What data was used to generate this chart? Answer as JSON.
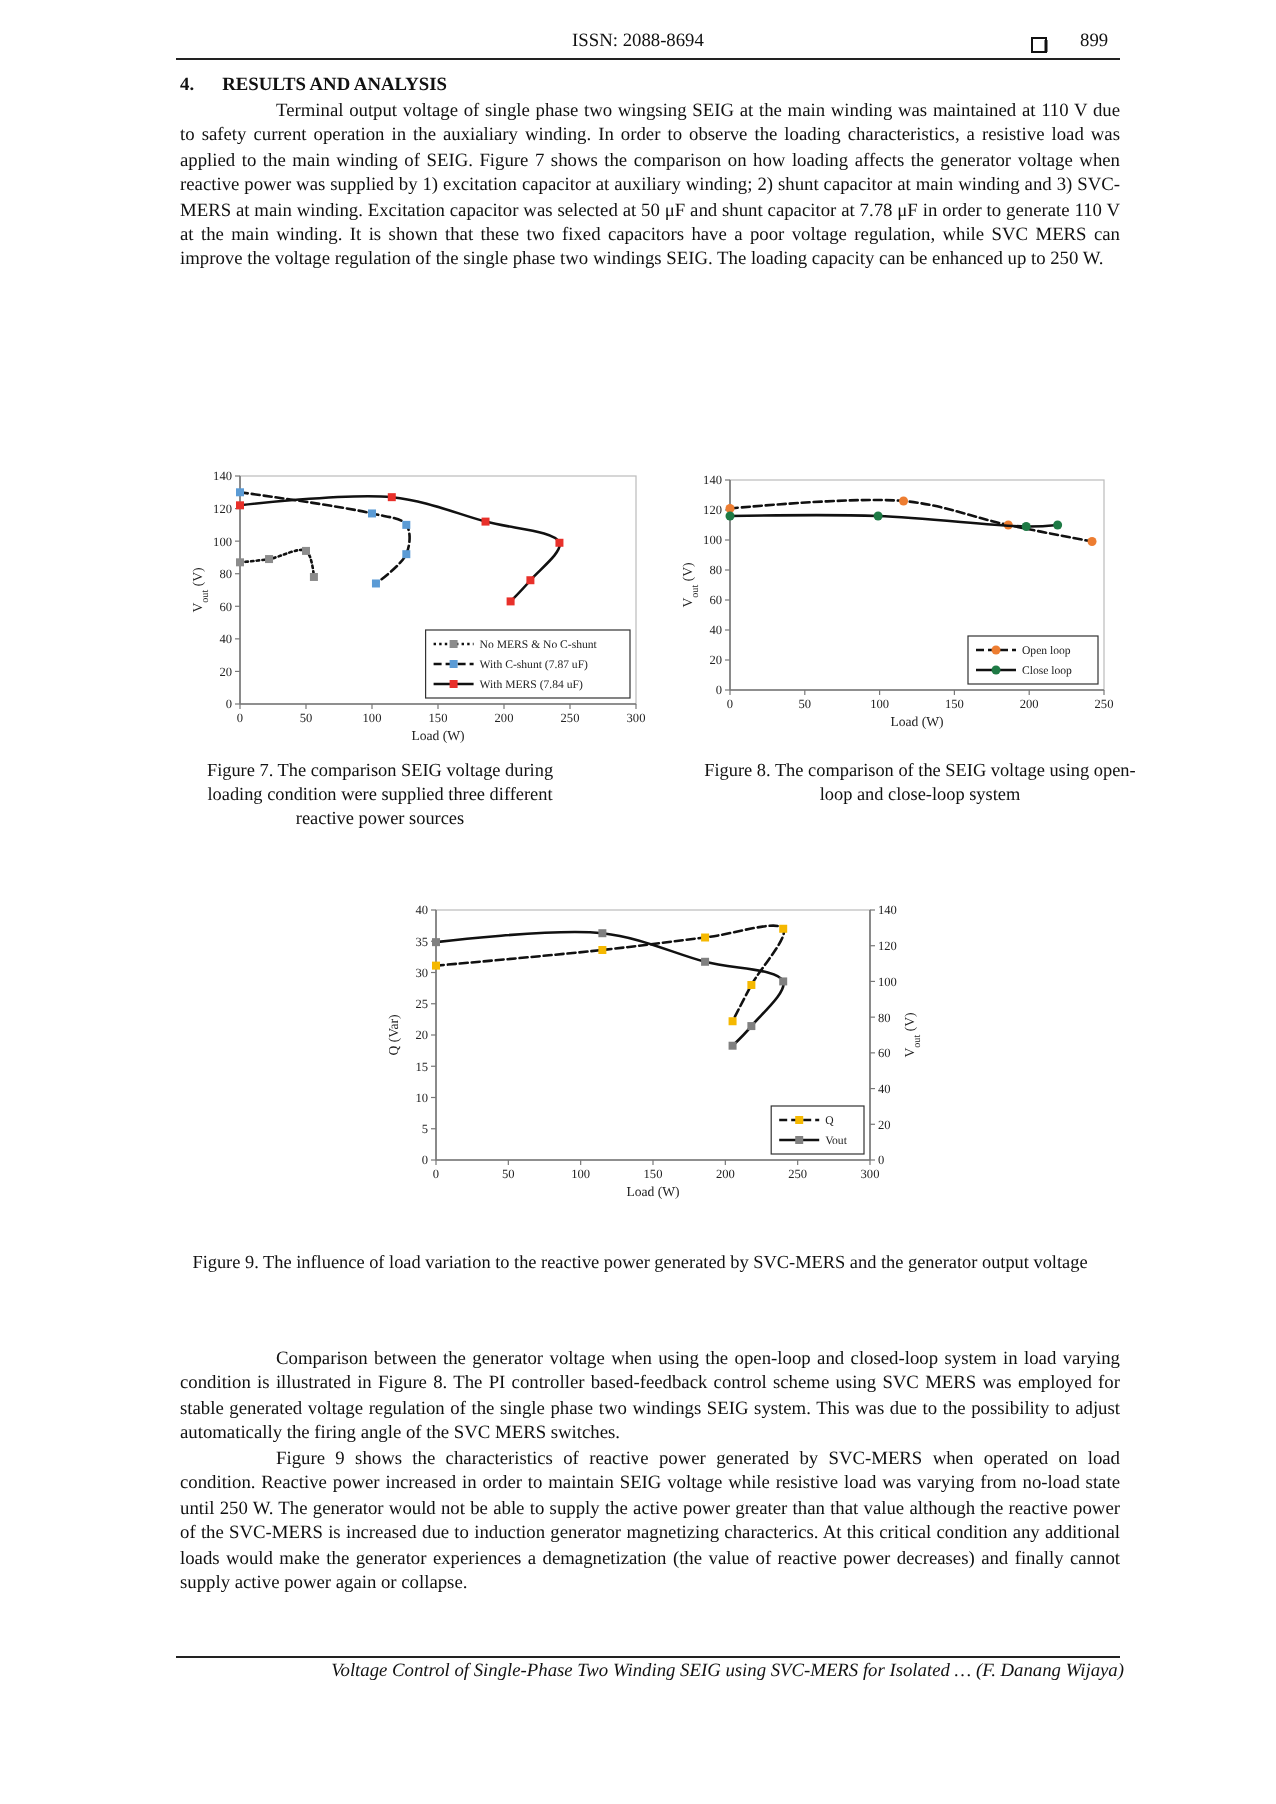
{
  "chart_data": [
    {
      "type": "line",
      "title": "Figure 7. The comparison SEIG voltage during loading condition were supplied three different reactive power sources",
      "xlabel": "Load (W)",
      "ylabel": "V$_{out}$ (V)",
      "xlim": [
        0,
        300
      ],
      "xticks": [
        0,
        50,
        100,
        150,
        200,
        250,
        300
      ],
      "ylim": [
        0,
        140
      ],
      "yticks": [
        0,
        20,
        40,
        60,
        80,
        100,
        120,
        140
      ],
      "marker": "square",
      "legend": "bottom right",
      "annotations": [
        "ISSN: 2088-8694",
        "899",
        "4.      RESULTS AND ANALYSIS",
        "Terminal output voltage of single phase two wingsing SEIG at the main winding was maintained at 110 V due to safety current operation in the auxialiary winding. In order to observe the loading characteristics, a resistive load was applied to the main winding of SEIG. Figure 7 shows the comparison on how loading affects the generator voltage when reactive power was supplied by 1) excitation capacitor at auxiliary winding; 2) shunt capacitor at main winding and 3) SVC-MERS at main winding. Excitation capacitor was selected at 50 μF and shunt capacitor at 7.78 μF in order to generate 110 V at the main winding. It is shown that these two fixed capacitors have a poor voltage regulation, while SVC MERS can improve the voltage regulation of the single phase two windings SEIG. The loading capacity can be enhanced up to 250 W."
      ],
      "series": [
        {
          "name": "No MERS & No C-shunt",
          "color": "#8c8c8c",
          "line_style": "dotted",
          "x": [
            0,
            22,
            50,
            56
          ],
          "values": [
            87,
            89,
            94,
            78
          ]
        },
        {
          "name": "With C-shunt (7.87 uF)",
          "color": "#5b9bd5",
          "line_style": "dashed",
          "x": [
            0,
            100,
            126,
            126,
            103
          ],
          "values": [
            130,
            117,
            110,
            92,
            74
          ]
        },
        {
          "name": "With MERS (7.84 uF)",
          "color": "#e8302a",
          "line_style": "solid",
          "x": [
            0,
            115,
            186,
            242,
            220,
            205
          ],
          "values": [
            122,
            127,
            112,
            99,
            76,
            63
          ]
        }
      ]
    },
    {
      "type": "line",
      "title": "Figure 8. The comparison of the SEIG voltage using open-loop and close-loop system",
      "xlabel": "Load (W)",
      "ylabel": "V$_{out}$ (V)",
      "xlim": [
        0,
        250
      ],
      "xticks": [
        0,
        50,
        100,
        150,
        200,
        250
      ],
      "ylim": [
        0,
        140
      ],
      "yticks": [
        0,
        20,
        40,
        60,
        80,
        100,
        120,
        140
      ],
      "marker": "circle",
      "legend": "bottom right",
      "series": [
        {
          "name": "Open loop",
          "color": "#ed7d31",
          "line_style": "dashed",
          "x": [
            0,
            116,
            186,
            242
          ],
          "values": [
            121,
            126,
            110,
            99
          ]
        },
        {
          "name": "Close loop",
          "color": "#1e7a45",
          "line_style": "solid",
          "x": [
            0,
            99,
            198,
            219
          ],
          "values": [
            116,
            116,
            109,
            110
          ]
        }
      ]
    },
    {
      "type": "line",
      "title": "Figure 9. The influence of load variation to the reactive power generated by SVC-MERS and the generator output voltage",
      "xlabel": "Load (W)",
      "ylabel": "Q (Var)",
      "y2label": "V$_{out}$ (V)",
      "xlim": [
        0,
        300
      ],
      "xticks": [
        0,
        50,
        100,
        150,
        200,
        250,
        300
      ],
      "ylim": [
        0,
        40
      ],
      "yticks": [
        0,
        5,
        10,
        15,
        20,
        25,
        30,
        35,
        40
      ],
      "y2lim": [
        0,
        140
      ],
      "y2ticks": [
        0,
        20,
        40,
        60,
        80,
        100,
        120,
        140
      ],
      "marker": "square",
      "legend": "bottom right",
      "annotations": [
        "Comparison between the generator voltage when using the open-loop and closed-loop system in load varying condition is illustrated in Figure 8. The PI controller based-feedback control scheme using SVC MERS was employed for stable generated voltage regulation of the single phase two windings SEIG system. This was due to the possibility to adjust automatically the firing angle of the SVC MERS switches.",
        "Figure 9 shows the characteristics of reactive power generated by SVC-MERS when operated on load condition. Reactive power increased in order to maintain SEIG voltage while resistive load was varying from no-load state until 250 W. The generator would not be able to supply the active power greater than that value although the reactive power of the SVC-MERS is increased due to induction generator magnetizing characterics. At this critical condition any additional loads would make the generator experiences a demagnetization (the value of reactive power decreases) and finally cannot supply active power again or collapse.",
        "Voltage Control of Single-Phase Two Winding SEIG using SVC-MERS for Isolated … (F. Danang Wijaya)"
      ],
      "series": [
        {
          "name": "Q",
          "color": "#f5b800",
          "line_style": "dashed",
          "x": [
            0,
            115,
            186,
            240,
            218,
            205
          ],
          "values": [
            31.1,
            33.6,
            35.6,
            37,
            28,
            22.2
          ]
        },
        {
          "name": "Vout",
          "color": "#808080",
          "line_style": "solid",
          "axis": "y2",
          "x": [
            0,
            115,
            186,
            240,
            218,
            205
          ],
          "values": [
            122,
            127,
            111,
            100,
            75,
            64
          ]
        }
      ]
    }
  ]
}
